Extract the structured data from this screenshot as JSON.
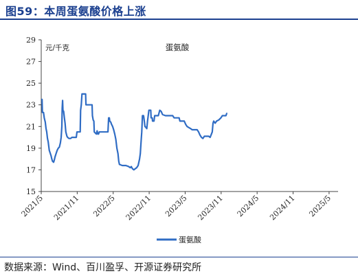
{
  "figure_title": "图59：本周蛋氨酸价格上涨",
  "source": "数据来源：Wind、百川盈孚、开源证券研究所",
  "colors": {
    "series": "#2f6cc4",
    "title": "#1a3f8f",
    "axis": "#444444"
  },
  "chart_data": {
    "type": "line",
    "title": "蛋氨酸",
    "unit_label": "元/千克",
    "ylim": [
      15,
      29
    ],
    "yticks": [
      15,
      17,
      19,
      21,
      23,
      25,
      27,
      29
    ],
    "xlim": [
      2021.3333,
      2025.4583
    ],
    "xticks": [
      {
        "label": "2021/5",
        "x": 2021.3333
      },
      {
        "label": "2021/11",
        "x": 2021.8333
      },
      {
        "label": "2022/5",
        "x": 2022.3333
      },
      {
        "label": "2022/11",
        "x": 2022.8333
      },
      {
        "label": "2023/5",
        "x": 2023.3333
      },
      {
        "label": "2023/11",
        "x": 2023.8333
      },
      {
        "label": "2024/5",
        "x": 2024.3333
      },
      {
        "label": "2024/11",
        "x": 2024.8333
      },
      {
        "label": "2025/5",
        "x": 2025.3333
      }
    ],
    "grid": false,
    "legend_position": "bottom",
    "series": [
      {
        "name": "蛋氨酸",
        "points": [
          [
            2021.333,
            23.5
          ],
          [
            2021.345,
            23.5
          ],
          [
            2021.35,
            22.3
          ],
          [
            2021.365,
            22.3
          ],
          [
            2021.375,
            21.8
          ],
          [
            2021.39,
            21.4
          ],
          [
            2021.4,
            20.8
          ],
          [
            2021.41,
            20.5
          ],
          [
            2021.42,
            19.9
          ],
          [
            2021.43,
            19.6
          ],
          [
            2021.445,
            18.8
          ],
          [
            2021.46,
            18.5
          ],
          [
            2021.47,
            18.3
          ],
          [
            2021.48,
            18.0
          ],
          [
            2021.49,
            17.8
          ],
          [
            2021.505,
            17.7
          ],
          [
            2021.515,
            17.9
          ],
          [
            2021.525,
            18.2
          ],
          [
            2021.54,
            18.5
          ],
          [
            2021.555,
            18.8
          ],
          [
            2021.57,
            19.0
          ],
          [
            2021.585,
            19.1
          ],
          [
            2021.6,
            19.5
          ],
          [
            2021.61,
            20.0
          ],
          [
            2021.62,
            21.0
          ],
          [
            2021.625,
            22.7
          ],
          [
            2021.63,
            23.4
          ],
          [
            2021.635,
            22.5
          ],
          [
            2021.645,
            22.4
          ],
          [
            2021.655,
            21.8
          ],
          [
            2021.665,
            21.3
          ],
          [
            2021.675,
            20.5
          ],
          [
            2021.69,
            20.1
          ],
          [
            2021.7,
            20.0
          ],
          [
            2021.72,
            19.9
          ],
          [
            2021.74,
            19.9
          ],
          [
            2021.76,
            20.0
          ],
          [
            2021.79,
            20.0
          ],
          [
            2021.82,
            20.0
          ],
          [
            2021.83,
            20.5
          ],
          [
            2021.85,
            20.5
          ],
          [
            2021.875,
            20.5
          ],
          [
            2021.88,
            22.5
          ],
          [
            2021.89,
            23.0
          ],
          [
            2021.9,
            24.0
          ],
          [
            2021.95,
            24.0
          ],
          [
            2021.955,
            23.0
          ],
          [
            2022.0,
            23.0
          ],
          [
            2022.04,
            23.0
          ],
          [
            2022.045,
            22.0
          ],
          [
            2022.055,
            21.6
          ],
          [
            2022.065,
            21.5
          ],
          [
            2022.07,
            20.5
          ],
          [
            2022.085,
            20.4
          ],
          [
            2022.1,
            20.3
          ],
          [
            2022.11,
            20.6
          ],
          [
            2022.12,
            20.3
          ],
          [
            2022.13,
            20.3
          ],
          [
            2022.14,
            20.5
          ],
          [
            2022.2,
            20.5
          ],
          [
            2022.26,
            20.5
          ],
          [
            2022.27,
            21.8
          ],
          [
            2022.28,
            21.8
          ],
          [
            2022.285,
            21.5
          ],
          [
            2022.3,
            21.4
          ],
          [
            2022.31,
            21.2
          ],
          [
            2022.325,
            21.0
          ],
          [
            2022.34,
            20.7
          ],
          [
            2022.355,
            20.3
          ],
          [
            2022.37,
            19.8
          ],
          [
            2022.385,
            19.0
          ],
          [
            2022.4,
            18.5
          ],
          [
            2022.41,
            17.8
          ],
          [
            2022.42,
            17.5
          ],
          [
            2022.46,
            17.4
          ],
          [
            2022.51,
            17.4
          ],
          [
            2022.55,
            17.3
          ],
          [
            2022.57,
            17.2
          ],
          [
            2022.585,
            17.3
          ],
          [
            2022.6,
            17.1
          ],
          [
            2022.62,
            17.0
          ],
          [
            2022.64,
            17.1
          ],
          [
            2022.66,
            17.2
          ],
          [
            2022.68,
            17.4
          ],
          [
            2022.7,
            18.0
          ],
          [
            2022.71,
            18.5
          ],
          [
            2022.72,
            19.5
          ],
          [
            2022.73,
            20.5
          ],
          [
            2022.74,
            22.0
          ],
          [
            2022.755,
            22.0
          ],
          [
            2022.76,
            21.8
          ],
          [
            2022.775,
            21.0
          ],
          [
            2022.79,
            20.9
          ],
          [
            2022.8,
            20.8
          ],
          [
            2022.81,
            21.5
          ],
          [
            2022.82,
            22.0
          ],
          [
            2022.83,
            22.5
          ],
          [
            2022.855,
            22.5
          ],
          [
            2022.86,
            21.8
          ],
          [
            2022.875,
            21.8
          ],
          [
            2022.88,
            21.5
          ],
          [
            2022.9,
            21.5
          ],
          [
            2022.91,
            22.0
          ],
          [
            2022.93,
            22.0
          ],
          [
            2022.96,
            22.0
          ],
          [
            2022.98,
            22.5
          ],
          [
            2023.0,
            22.4
          ],
          [
            2023.02,
            22.1
          ],
          [
            2023.06,
            22.0
          ],
          [
            2023.12,
            22.0
          ],
          [
            2023.16,
            22.0
          ],
          [
            2023.18,
            21.8
          ],
          [
            2023.22,
            21.8
          ],
          [
            2023.25,
            21.8
          ],
          [
            2023.26,
            21.5
          ],
          [
            2023.32,
            21.5
          ],
          [
            2023.34,
            21.2
          ],
          [
            2023.36,
            21.0
          ],
          [
            2023.41,
            20.8
          ],
          [
            2023.43,
            20.7
          ],
          [
            2023.46,
            20.7
          ],
          [
            2023.5,
            20.7
          ],
          [
            2023.52,
            20.5
          ],
          [
            2023.54,
            20.2
          ],
          [
            2023.56,
            20.0
          ],
          [
            2023.58,
            19.9
          ],
          [
            2023.6,
            20.1
          ],
          [
            2023.66,
            20.1
          ],
          [
            2023.68,
            20.0
          ],
          [
            2023.71,
            20.5
          ],
          [
            2023.72,
            21.3
          ],
          [
            2023.73,
            21.5
          ],
          [
            2023.75,
            21.3
          ],
          [
            2023.77,
            21.5
          ],
          [
            2023.8,
            21.6
          ],
          [
            2023.83,
            21.8
          ],
          [
            2023.85,
            22.0
          ],
          [
            2023.88,
            22.0
          ],
          [
            2023.9,
            22.0
          ],
          [
            2023.91,
            22.2
          ],
          [
            2023.92,
            22.2
          ]
        ]
      }
    ]
  }
}
